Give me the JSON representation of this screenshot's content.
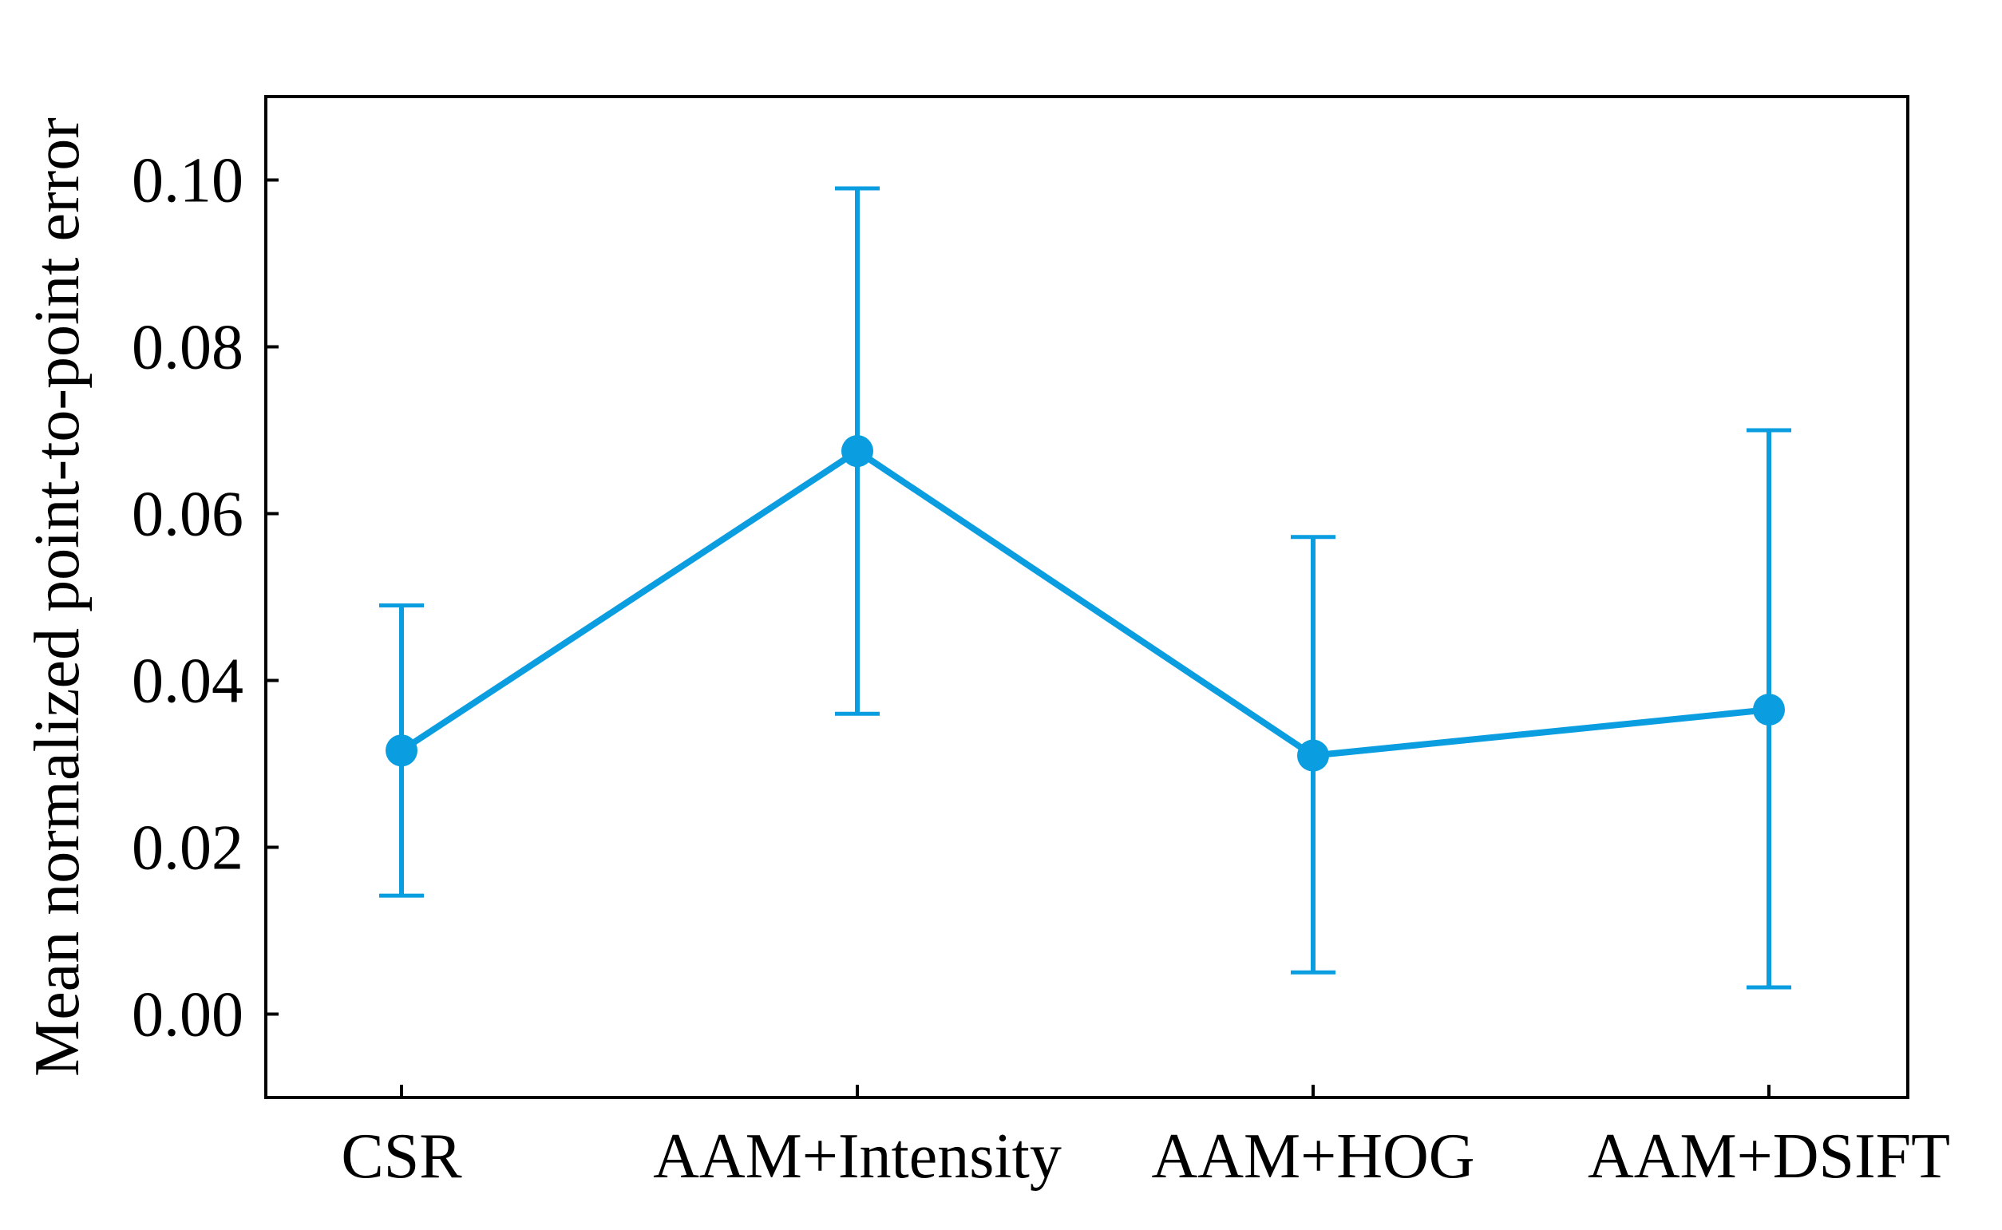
{
  "chart_data": {
    "type": "line",
    "categories": [
      "CSR",
      "AAM+Intensity",
      "AAM+HOG",
      "AAM+DSIFT"
    ],
    "series": [
      {
        "values": [
          0.0316,
          0.0675,
          0.031,
          0.0365
        ],
        "error_low": [
          0.0142,
          0.036,
          0.005,
          0.0032
        ],
        "error_high": [
          0.049,
          0.099,
          0.0572,
          0.07
        ]
      }
    ],
    "ylabel": "Mean normalized point-to-point error",
    "ylim": [
      -0.01,
      0.11
    ],
    "yticks": [
      0.0,
      0.02,
      0.04,
      0.06,
      0.08,
      0.1
    ],
    "ytick_labels": [
      "0.00",
      "0.02",
      "0.04",
      "0.06",
      "0.08",
      "0.10"
    ],
    "grid": false,
    "line_color": "#0a9de0"
  }
}
